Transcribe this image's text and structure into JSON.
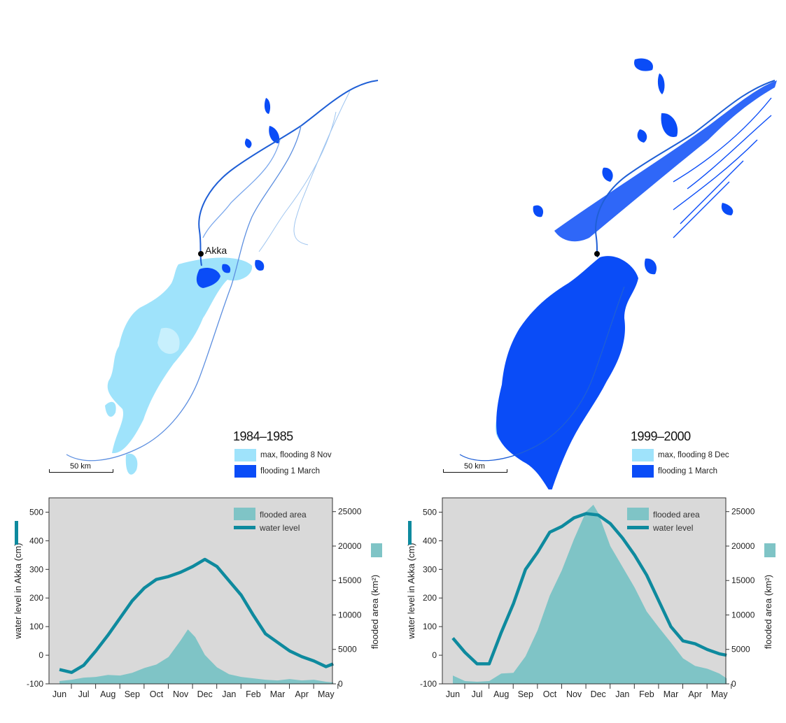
{
  "colors": {
    "max_flood": "#9fe3fb",
    "march_flood": "#0a4cf7",
    "river": "#1f5fd6",
    "chart_bg": "#d9d9d9",
    "area_fill": "#7fc4c6",
    "line": "#0e8a9e"
  },
  "city": "Akka",
  "scale_label": "50 km",
  "maps": [
    {
      "title": "1984–1985",
      "legend_max": "max, flooding 8 Nov",
      "legend_march": "flooding 1 March"
    },
    {
      "title": "1999–2000",
      "legend_max": "max, flooding 8 Dec",
      "legend_march": "flooding 1 March"
    }
  ],
  "chart_data": [
    {
      "type": "area",
      "categories": [
        "Jun",
        "Jul",
        "Aug",
        "Sep",
        "Oct",
        "Nov",
        "Dec",
        "Jan",
        "Feb",
        "Mar",
        "Apr",
        "May"
      ],
      "ylabel": "water level in Akka (cm)",
      "y2label": "flooded area (km²)",
      "ylim": [
        -100,
        550
      ],
      "y2lim": [
        0,
        27000
      ],
      "yticks": [
        -100,
        0,
        100,
        200,
        300,
        400,
        500
      ],
      "y2ticks": [
        0,
        5000,
        10000,
        15000,
        20000,
        25000
      ],
      "legend": [
        "flooded area",
        "water level"
      ],
      "legend_position": "top-right",
      "series": [
        {
          "name": "water level",
          "x": [
            0,
            0.5,
            1,
            1.5,
            2,
            2.5,
            3,
            3.5,
            4,
            4.5,
            5,
            5.5,
            6,
            6.5,
            7,
            7.5,
            8,
            8.5,
            9,
            9.5,
            10,
            10.5,
            11,
            11.3
          ],
          "values": [
            -50,
            -60,
            -35,
            15,
            70,
            130,
            190,
            235,
            265,
            275,
            290,
            310,
            335,
            310,
            260,
            210,
            140,
            75,
            45,
            15,
            -5,
            -20,
            -40,
            -30
          ]
        },
        {
          "name": "flooded area",
          "x": [
            0,
            0.5,
            1,
            1.5,
            2,
            2.5,
            3,
            3.5,
            4,
            4.5,
            5,
            5.3,
            5.6,
            6,
            6.5,
            7,
            7.5,
            8,
            8.5,
            9,
            9.5,
            10,
            10.5,
            11,
            11.3
          ],
          "values": [
            400,
            600,
            900,
            1000,
            1300,
            1200,
            1600,
            2300,
            2800,
            3900,
            6300,
            7900,
            6800,
            4200,
            2400,
            1400,
            1000,
            800,
            600,
            500,
            700,
            500,
            600,
            300,
            200
          ]
        }
      ]
    },
    {
      "type": "area",
      "categories": [
        "Jun",
        "Jul",
        "Aug",
        "Sep",
        "Oct",
        "Nov",
        "Dec",
        "Jan",
        "Feb",
        "Mar",
        "Apr",
        "May"
      ],
      "ylabel": "water level in Akka (cm)",
      "y2label": "flooded area (km²)",
      "ylim": [
        -100,
        550
      ],
      "y2lim": [
        0,
        27000
      ],
      "yticks": [
        -100,
        0,
        100,
        200,
        300,
        400,
        500
      ],
      "y2ticks": [
        0,
        5000,
        10000,
        15000,
        20000,
        25000
      ],
      "legend": [
        "flooded area",
        "water level"
      ],
      "legend_position": "top-right",
      "series": [
        {
          "name": "water level",
          "x": [
            0,
            0.5,
            1,
            1.5,
            2,
            2.5,
            3,
            3.5,
            4,
            4.5,
            5,
            5.5,
            6,
            6.5,
            7,
            7.5,
            8,
            8.5,
            9,
            9.5,
            10,
            10.5,
            11,
            11.3
          ],
          "values": [
            60,
            10,
            -30,
            -30,
            80,
            180,
            300,
            360,
            430,
            450,
            480,
            495,
            490,
            460,
            410,
            350,
            280,
            190,
            100,
            50,
            40,
            20,
            5,
            0
          ]
        },
        {
          "name": "flooded area",
          "x": [
            0,
            0.5,
            1,
            1.5,
            2,
            2.5,
            3,
            3.5,
            4,
            4.5,
            5,
            5.5,
            5.8,
            6,
            6.5,
            7,
            7.5,
            8,
            8.5,
            9,
            9.5,
            10,
            10.5,
            11,
            11.3
          ],
          "values": [
            1200,
            400,
            300,
            400,
            1500,
            1600,
            4000,
            7800,
            12800,
            16500,
            21000,
            25000,
            26000,
            24800,
            20000,
            17000,
            14000,
            10500,
            8200,
            6000,
            3700,
            2600,
            2200,
            1500,
            800
          ]
        }
      ]
    }
  ]
}
